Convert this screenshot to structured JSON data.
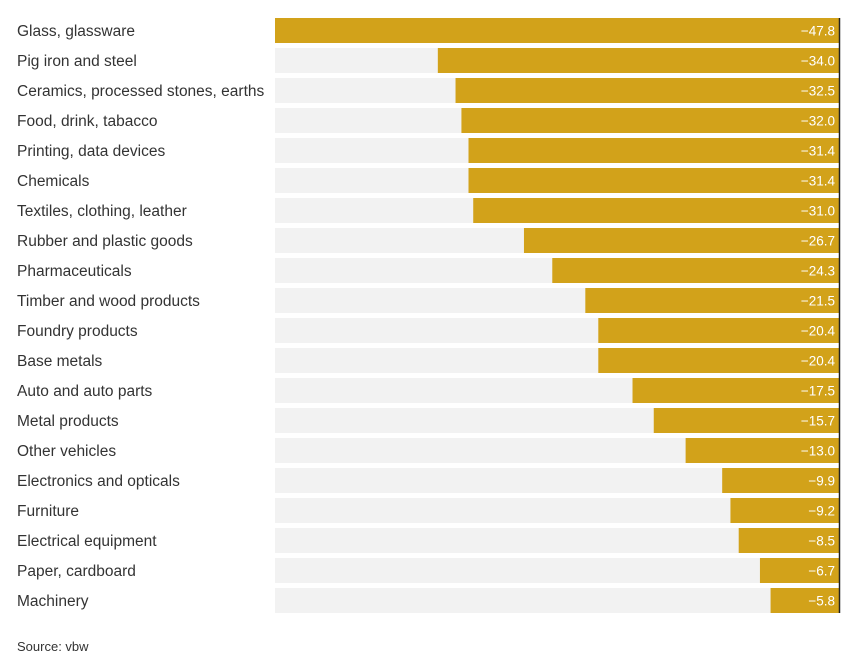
{
  "chart_data": {
    "type": "bar",
    "orientation": "horizontal",
    "categories": [
      "Glass, glassware",
      "Pig iron and steel",
      "Ceramics, processed stones, earths",
      "Food, drink, tabacco",
      "Printing, data devices",
      "Chemicals",
      "Textiles, clothing, leather",
      "Rubber and plastic goods",
      "Pharmaceuticals",
      "Timber and wood products",
      "Foundry products",
      "Base metals",
      "Auto and auto parts",
      "Metal products",
      "Other vehicles",
      "Electronics and opticals",
      "Furniture",
      "Electrical equipment",
      "Paper, cardboard",
      "Machinery"
    ],
    "values": [
      -47.8,
      -34.0,
      -32.5,
      -32.0,
      -31.4,
      -31.4,
      -31.0,
      -26.7,
      -24.3,
      -21.5,
      -20.4,
      -20.4,
      -17.5,
      -15.7,
      -13.0,
      -9.9,
      -9.2,
      -8.5,
      -6.7,
      -5.8
    ],
    "value_labels": [
      "−47.8",
      "−34.0",
      "−32.5",
      "−32.0",
      "−31.4",
      "−31.4",
      "−31.0",
      "−26.7",
      "−24.3",
      "−21.5",
      "−20.4",
      "−20.4",
      "−17.5",
      "−15.7",
      "−13.0",
      "−9.9",
      "−9.2",
      "−8.5",
      "−6.7",
      "−5.8"
    ],
    "xlim": [
      -47.8,
      0
    ],
    "grid": false,
    "colors": {
      "bar": "#d2a21a",
      "track": "#f2f2f2",
      "zero_line": "#222222",
      "value_text": "#ffffff"
    }
  },
  "source": "Source: vbw"
}
